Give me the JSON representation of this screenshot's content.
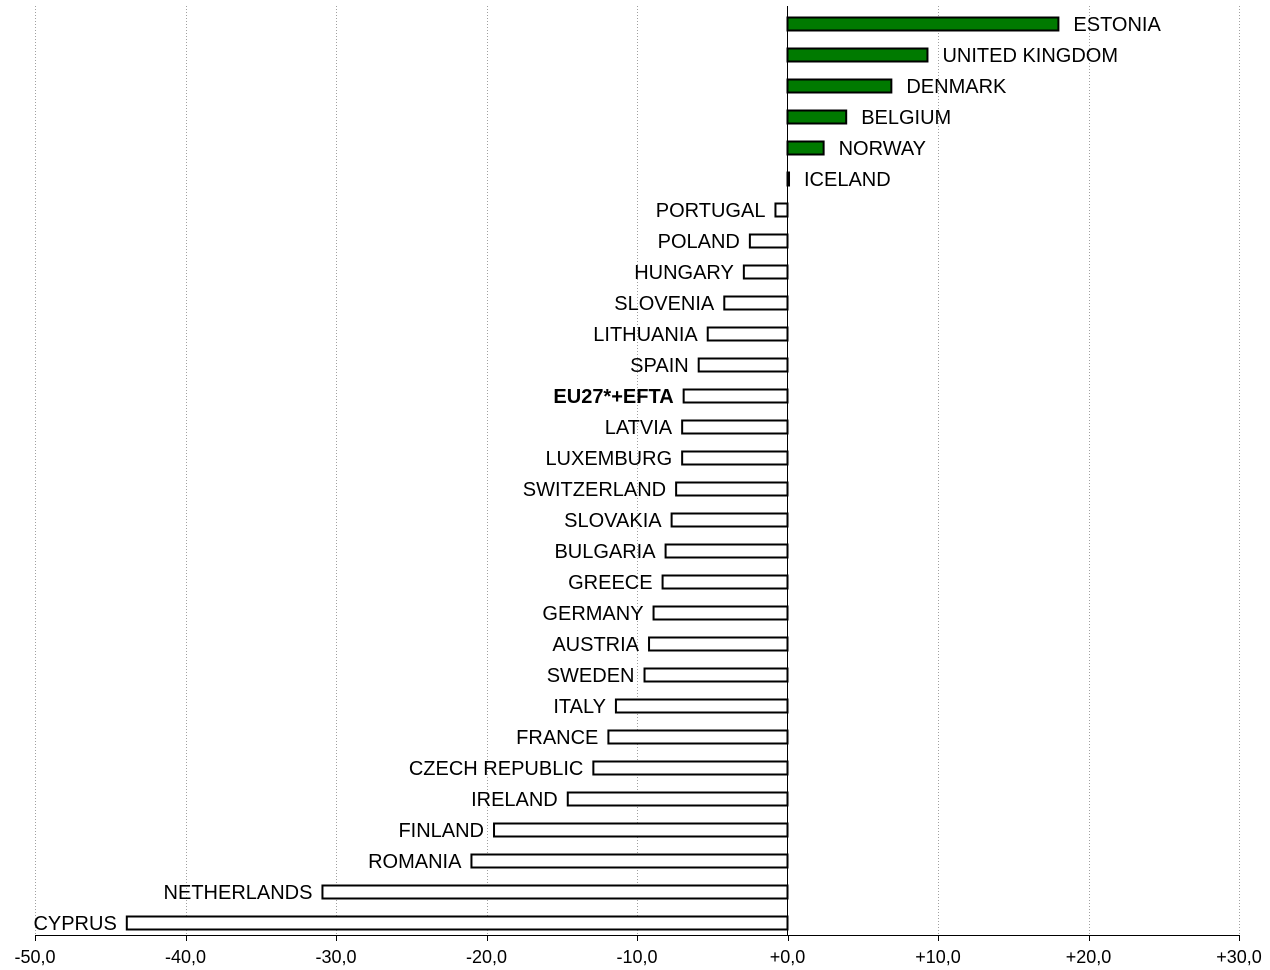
{
  "chart_data": {
    "type": "bar",
    "orientation": "horizontal",
    "xlim": [
      -50,
      30
    ],
    "ticks": [
      -50,
      -40,
      -30,
      -20,
      -10,
      0,
      10,
      20,
      30
    ],
    "tick_labels": [
      "-50,0",
      "-40,0",
      "-30,0",
      "-20,0",
      "-10,0",
      "+0,0",
      "+10,0",
      "+20,0",
      "+30,0"
    ],
    "grid": "vertical dotted",
    "positive_color": "#007a00",
    "negative_color": "#ffffff",
    "categories": [
      "ESTONIA",
      "UNITED KINGDOM",
      "DENMARK",
      "BELGIUM",
      "NORWAY",
      "ICELAND",
      "PORTUGAL",
      "POLAND",
      "HUNGARY",
      "SLOVENIA",
      "LITHUANIA",
      "SPAIN",
      "EU27*+EFTA",
      "LATVIA",
      "LUXEMBURG",
      "SWITZERLAND",
      "SLOVAKIA",
      "BULGARIA",
      "GREECE",
      "GERMANY",
      "AUSTRIA",
      "SWEDEN",
      "ITALY",
      "FRANCE",
      "CZECH REPUBLIC",
      "IRELAND",
      "FINLAND",
      "ROMANIA",
      "NETHERLANDS",
      "CYPRUS"
    ],
    "values": [
      18.0,
      9.3,
      6.9,
      3.9,
      2.4,
      0.1,
      -0.8,
      -2.5,
      -2.9,
      -4.2,
      -5.3,
      -5.9,
      -6.9,
      -7.0,
      -7.0,
      -7.4,
      -7.7,
      -8.1,
      -8.3,
      -8.9,
      -9.2,
      -9.5,
      -11.4,
      -11.9,
      -12.9,
      -14.6,
      -19.5,
      -21.0,
      -30.9,
      -43.9
    ],
    "highlight": [
      "EU27*+EFTA"
    ]
  }
}
